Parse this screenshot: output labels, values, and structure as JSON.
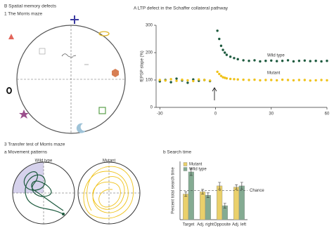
{
  "panels": {
    "spatial_title": "B Spatial memory defects",
    "maze_title": "1 The Morris maze",
    "ltp_title": "A LTP defect in the Schaffer collateral pathway",
    "transfer_title": "3 Transfer test of Morris maze",
    "movement_title": "a Movement patterns",
    "movement_wild": "Wild type",
    "movement_mutant": "Mutant",
    "search_title": "b Search time"
  },
  "chart_data": [
    {
      "type": "scatter",
      "y_label": "fEPSP slope (%)",
      "x": [
        -30,
        -27,
        -24,
        -21,
        -18,
        -15,
        -12,
        -9,
        -6,
        -3,
        1,
        2,
        3,
        4,
        5,
        6,
        8,
        10,
        12,
        15,
        18,
        21,
        24,
        27,
        30,
        33,
        36,
        39,
        42,
        45,
        48,
        51,
        54,
        57,
        60
      ],
      "series": [
        {
          "name": "Wild type",
          "color": "#1d5a3e",
          "values": [
            95,
            100,
            92,
            105,
            98,
            90,
            102,
            97,
            100,
            96,
            280,
            250,
            225,
            210,
            200,
            192,
            185,
            180,
            176,
            172,
            170,
            172,
            168,
            170,
            171,
            169,
            170,
            172,
            168,
            170,
            171,
            169,
            170,
            168,
            170
          ]
        },
        {
          "name": "Mutant",
          "color": "#efc21a",
          "values": [
            100,
            98,
            103,
            97,
            101,
            99,
            96,
            102,
            100,
            98,
            130,
            122,
            115,
            110,
            108,
            106,
            104,
            103,
            102,
            101,
            100,
            101,
            99,
            100,
            100,
            99,
            101,
            100,
            99,
            100,
            100,
            98,
            99,
            100,
            99
          ]
        }
      ],
      "xlim": [
        -32,
        60
      ],
      "ylim": [
        0,
        300
      ],
      "xticks": [
        -30,
        0,
        30,
        60
      ],
      "yticks": [
        0,
        100,
        200,
        300
      ]
    },
    {
      "type": "bar",
      "y_label": "Percent total search time",
      "categories": [
        "Target",
        "Adj. right",
        "Opposite",
        "Adj. left"
      ],
      "series": [
        {
          "name": "Mutant",
          "color": "#ead06a",
          "values": [
            22,
            24,
            29,
            28
          ],
          "errors": [
            2,
            2,
            3,
            2
          ]
        },
        {
          "name": "Wild type",
          "color": "#84ab92",
          "values": [
            41,
            21,
            12,
            29
          ],
          "errors": [
            3,
            2,
            2,
            3
          ]
        }
      ],
      "ylim": [
        0,
        50
      ],
      "reference_line": {
        "value": 25,
        "label": "Chance"
      }
    }
  ]
}
